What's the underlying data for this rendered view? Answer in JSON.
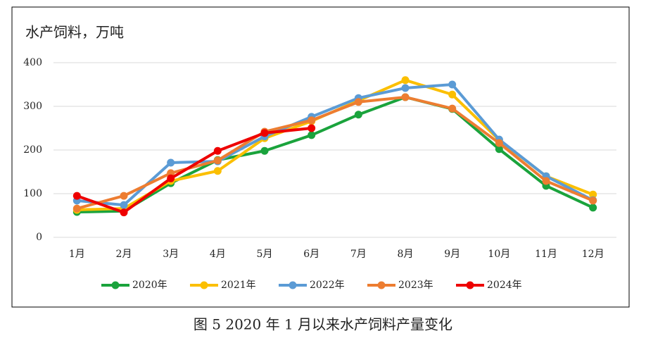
{
  "chart_data": {
    "type": "line",
    "y_label": "水产饲料，万吨",
    "caption": "图 5 2020 年 1 月以来水产饲料产量变化",
    "categories": [
      "1月",
      "2月",
      "3月",
      "4月",
      "5月",
      "6月",
      "7月",
      "8月",
      "9月",
      "10月",
      "11月",
      "12月"
    ],
    "series": [
      {
        "name": "2020年",
        "color": "#1aa33c",
        "values": [
          58,
          60,
          124,
          177,
          198,
          234,
          281,
          321,
          294,
          202,
          118,
          68
        ]
      },
      {
        "name": "2021年",
        "color": "#fbbf00",
        "values": [
          63,
          66,
          129,
          152,
          227,
          266,
          313,
          360,
          327,
          223,
          140,
          98
        ]
      },
      {
        "name": "2022年",
        "color": "#5b9bd5",
        "values": [
          84,
          74,
          171,
          174,
          231,
          276,
          319,
          342,
          350,
          224,
          140,
          85
        ]
      },
      {
        "name": "2023年",
        "color": "#ed7d31",
        "values": [
          66,
          95,
          147,
          176,
          242,
          268,
          310,
          321,
          295,
          216,
          129,
          84
        ]
      },
      {
        "name": "2024年",
        "color": "#ee0000",
        "values": [
          95,
          57,
          135,
          198,
          239,
          250,
          null,
          null,
          null,
          null,
          null,
          null
        ]
      }
    ],
    "ylim": [
      0,
      400
    ],
    "yticks": [
      0,
      100,
      200,
      300,
      400
    ],
    "grid": true,
    "legend": "bottom"
  }
}
